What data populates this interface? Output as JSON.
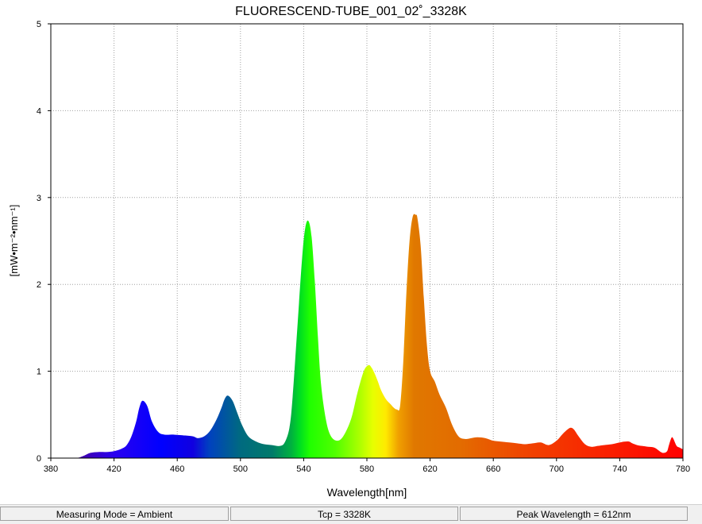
{
  "chart_data": {
    "type": "area",
    "title": "FLUORESCEND-TUBE_001_02˚_3328K",
    "xlabel": "Wavelength[nm]",
    "ylabel": "[mW•m⁻²•nm⁻¹]",
    "xlim": [
      380,
      780
    ],
    "ylim": [
      0,
      5
    ],
    "x_ticks": [
      380,
      420,
      460,
      500,
      540,
      580,
      620,
      660,
      700,
      740,
      780
    ],
    "y_ticks": [
      0,
      1,
      2,
      3,
      4,
      5
    ],
    "grid": true,
    "fill": "visible-spectrum gradient",
    "x": [
      380,
      395,
      400,
      405,
      410,
      415,
      420,
      425,
      428,
      431,
      434,
      436,
      438,
      441,
      444,
      448,
      452,
      458,
      465,
      470,
      473,
      477,
      481,
      485,
      488,
      490,
      492,
      495,
      498,
      501,
      505,
      510,
      515,
      520,
      525,
      528,
      531,
      533,
      536,
      539,
      541,
      543,
      545,
      547,
      549,
      551,
      554,
      557,
      561,
      565,
      570,
      574,
      578,
      581,
      583,
      585,
      587,
      589,
      592,
      595,
      597,
      599,
      601,
      603,
      605,
      607,
      609,
      611,
      612,
      614,
      616,
      618,
      620,
      623,
      626,
      630,
      634,
      638,
      642,
      646,
      650,
      655,
      660,
      665,
      670,
      675,
      680,
      685,
      690,
      695,
      700,
      704,
      707,
      709,
      711,
      714,
      718,
      722,
      726,
      730,
      735,
      740,
      743,
      746,
      748,
      751,
      754,
      758,
      762,
      766,
      768,
      770,
      771,
      772,
      773,
      774,
      776,
      778,
      780
    ],
    "y": [
      0,
      0,
      0.02,
      0.06,
      0.07,
      0.07,
      0.08,
      0.11,
      0.15,
      0.25,
      0.42,
      0.58,
      0.66,
      0.6,
      0.42,
      0.3,
      0.27,
      0.27,
      0.26,
      0.25,
      0.23,
      0.25,
      0.32,
      0.45,
      0.58,
      0.68,
      0.72,
      0.66,
      0.52,
      0.38,
      0.25,
      0.19,
      0.16,
      0.15,
      0.14,
      0.18,
      0.35,
      0.7,
      1.5,
      2.3,
      2.65,
      2.73,
      2.55,
      2.05,
      1.4,
      0.85,
      0.45,
      0.26,
      0.2,
      0.25,
      0.45,
      0.75,
      1.0,
      1.07,
      1.04,
      0.97,
      0.88,
      0.78,
      0.68,
      0.62,
      0.58,
      0.56,
      0.6,
      1.1,
      1.9,
      2.5,
      2.78,
      2.8,
      2.76,
      2.45,
      1.85,
      1.3,
      1.0,
      0.88,
      0.73,
      0.58,
      0.38,
      0.25,
      0.22,
      0.23,
      0.24,
      0.23,
      0.2,
      0.19,
      0.18,
      0.17,
      0.16,
      0.17,
      0.18,
      0.15,
      0.2,
      0.28,
      0.33,
      0.35,
      0.33,
      0.25,
      0.16,
      0.13,
      0.14,
      0.15,
      0.16,
      0.18,
      0.19,
      0.19,
      0.17,
      0.15,
      0.14,
      0.13,
      0.12,
      0.07,
      0.06,
      0.08,
      0.14,
      0.2,
      0.24,
      0.22,
      0.14,
      0.12,
      0.1
    ]
  },
  "status": {
    "mode": "Measuring Mode = Ambient",
    "tcp": "Tcp = 3328K",
    "peak": "Peak Wavelength = 612nm"
  }
}
